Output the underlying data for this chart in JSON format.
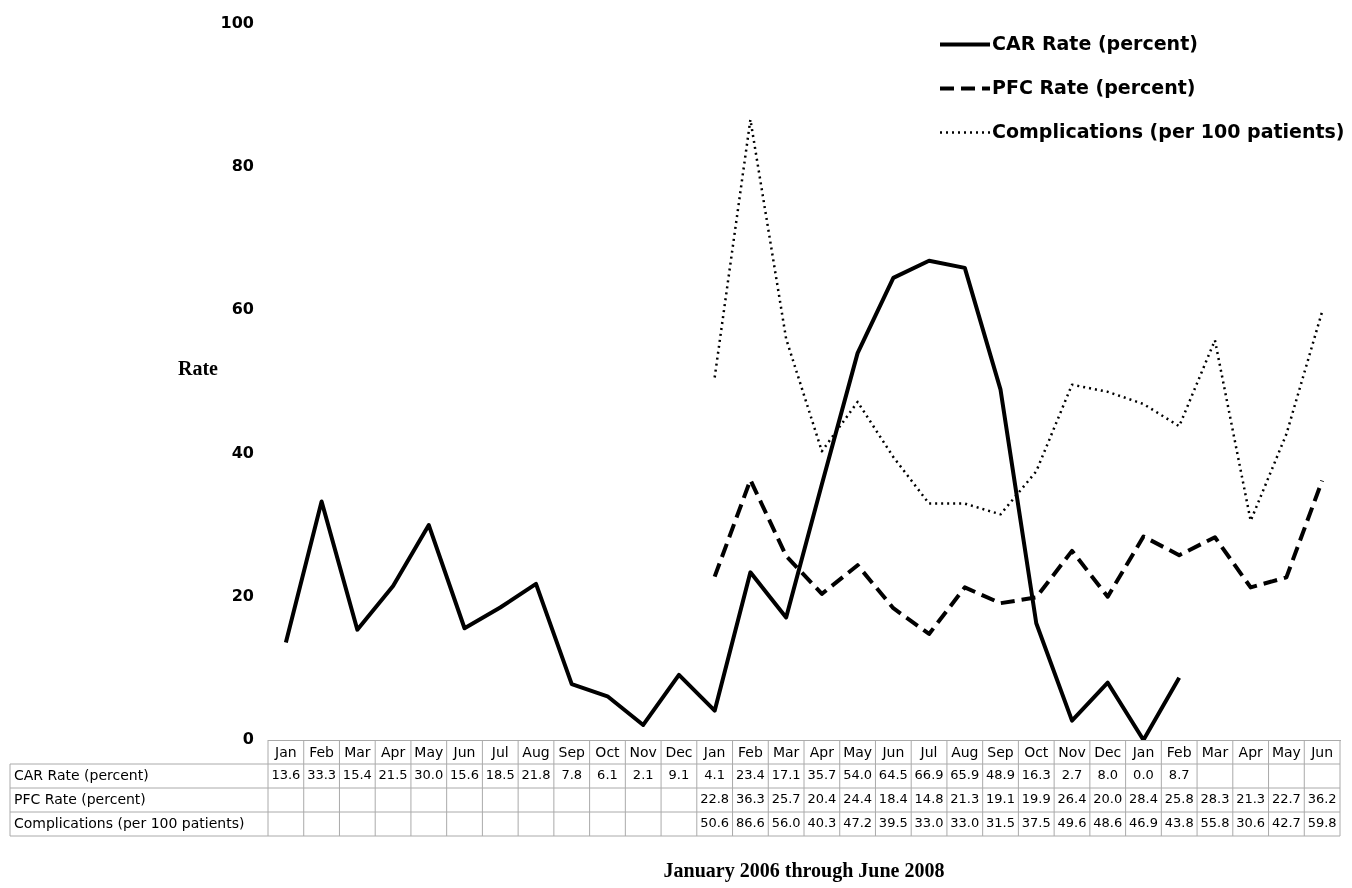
{
  "chart_data": {
    "type": "line",
    "xlabel": "January 2006 through June 2008",
    "ylabel": "Rate",
    "categories": [
      "Jan",
      "Feb",
      "Mar",
      "Apr",
      "May",
      "Jun",
      "Jul",
      "Aug",
      "Sep",
      "Oct",
      "Nov",
      "Dec",
      "Jan",
      "Feb",
      "Mar",
      "Apr",
      "May",
      "Jun",
      "Jul",
      "Aug",
      "Sep",
      "Oct",
      "Nov",
      "Dec",
      "Jan",
      "Feb",
      "Mar",
      "Apr",
      "May",
      "Jun"
    ],
    "series": [
      {
        "name": "CAR Rate (percent)",
        "color": "#000000",
        "line_style": "solid",
        "values": [
          13.6,
          33.3,
          15.4,
          21.5,
          30.0,
          15.6,
          18.5,
          21.8,
          7.8,
          6.1,
          2.1,
          9.1,
          4.1,
          23.4,
          17.1,
          35.7,
          54.0,
          64.5,
          66.9,
          65.9,
          48.9,
          16.3,
          2.7,
          8.0,
          0.0,
          8.7,
          null,
          null,
          null,
          null
        ],
        "value_labels": [
          "13.6",
          "33.3",
          "15.4",
          "21.5",
          "30.0",
          "15.6",
          "18.5",
          "21.8",
          "7.8",
          "6.1",
          "2.1",
          "9.1",
          "4.1",
          "23.4",
          "17.1",
          "35.7",
          "54.0",
          "64.5",
          "66.9",
          "65.9",
          "48.9",
          "16.3",
          "2.7",
          "8.0",
          "0.0",
          "8.7",
          null,
          null,
          null,
          null
        ]
      },
      {
        "name": "PFC Rate (percent)",
        "color": "#000000",
        "line_style": "dashed",
        "values": [
          null,
          null,
          null,
          null,
          null,
          null,
          null,
          null,
          null,
          null,
          null,
          null,
          22.8,
          36.3,
          25.7,
          20.4,
          24.4,
          18.4,
          14.8,
          21.3,
          19.1,
          19.9,
          26.4,
          20.0,
          28.4,
          25.8,
          28.3,
          21.3,
          22.7,
          36.2
        ],
        "value_labels": [
          null,
          null,
          null,
          null,
          null,
          null,
          null,
          null,
          null,
          null,
          null,
          null,
          "22.8",
          "36.3",
          "25.7",
          "20.4",
          "24.4",
          "18.4",
          "14.8",
          "21.3",
          "19.1",
          "19.9",
          "26.4",
          "20.0",
          "28.4",
          "25.8",
          "28.3",
          "21.3",
          "22.7",
          "36.2"
        ]
      },
      {
        "name": "Complications (per 100 patients)",
        "color": "#000000",
        "line_style": "dotted",
        "values": [
          null,
          null,
          null,
          null,
          null,
          null,
          null,
          null,
          null,
          null,
          null,
          null,
          50.6,
          86.6,
          56.0,
          40.3,
          47.2,
          39.5,
          33.0,
          33.0,
          31.5,
          37.5,
          49.6,
          48.6,
          46.9,
          43.8,
          55.8,
          30.6,
          42.7,
          59.8
        ],
        "value_labels": [
          null,
          null,
          null,
          null,
          null,
          null,
          null,
          null,
          null,
          null,
          null,
          null,
          "50.6",
          "86.6",
          "56.0",
          "40.3",
          "47.2",
          "39.5",
          "33.0",
          "33.0",
          "31.5",
          "37.5",
          "49.6",
          "48.6",
          "46.9",
          "43.8",
          "55.8",
          "30.6",
          "42.7",
          "59.8"
        ]
      }
    ],
    "ylim": [
      0,
      100
    ],
    "yticks": [
      0,
      20,
      40,
      60,
      80,
      100
    ],
    "grid": false,
    "legend": "top right",
    "marker": "none"
  }
}
